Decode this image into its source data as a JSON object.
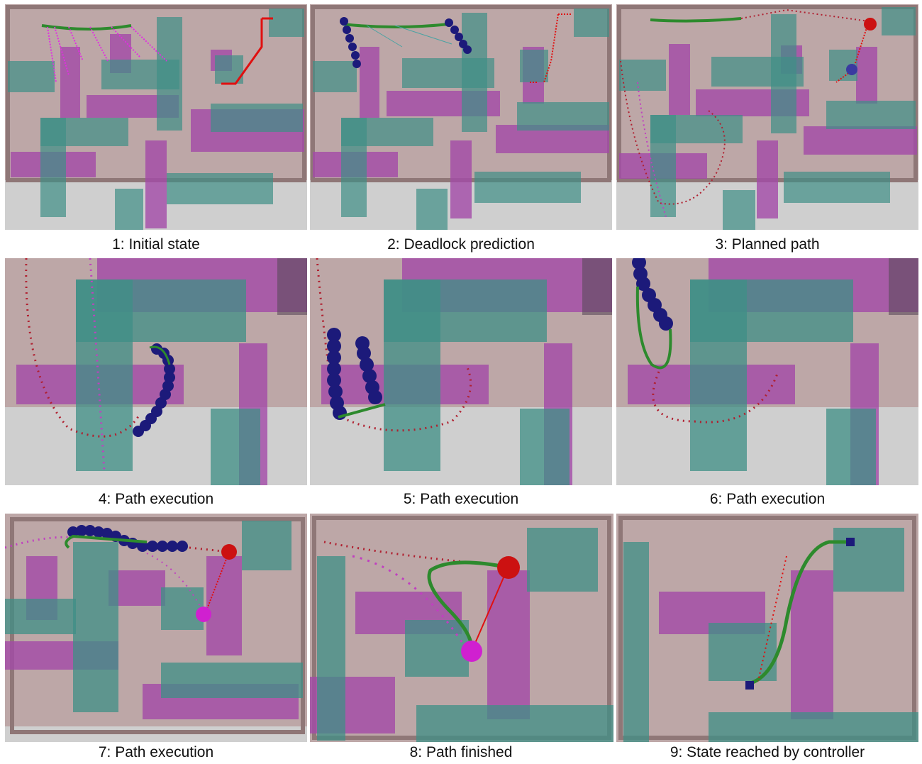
{
  "panels": [
    {
      "caption": "1: Initial state"
    },
    {
      "caption": "2: Deadlock prediction"
    },
    {
      "caption": "3: Planned path"
    },
    {
      "caption": "4: Path execution"
    },
    {
      "caption": "5: Path execution"
    },
    {
      "caption": "6: Path execution"
    },
    {
      "caption": "7: Path execution"
    },
    {
      "caption": "8: Path finished"
    },
    {
      "caption": "9: State reached by controller"
    }
  ],
  "colors": {
    "floor": "#bda7a7",
    "wall": "#9a8585",
    "ground_grey": "#cfcfcf",
    "teal_obstacle": "#3f8f86",
    "magenta_obstacle": "#a34aa8",
    "robot_chain": "#1c1a7a",
    "path_green": "#2d8a2d",
    "goal_red": "#cc1111",
    "target_magenta": "#d020d0"
  }
}
